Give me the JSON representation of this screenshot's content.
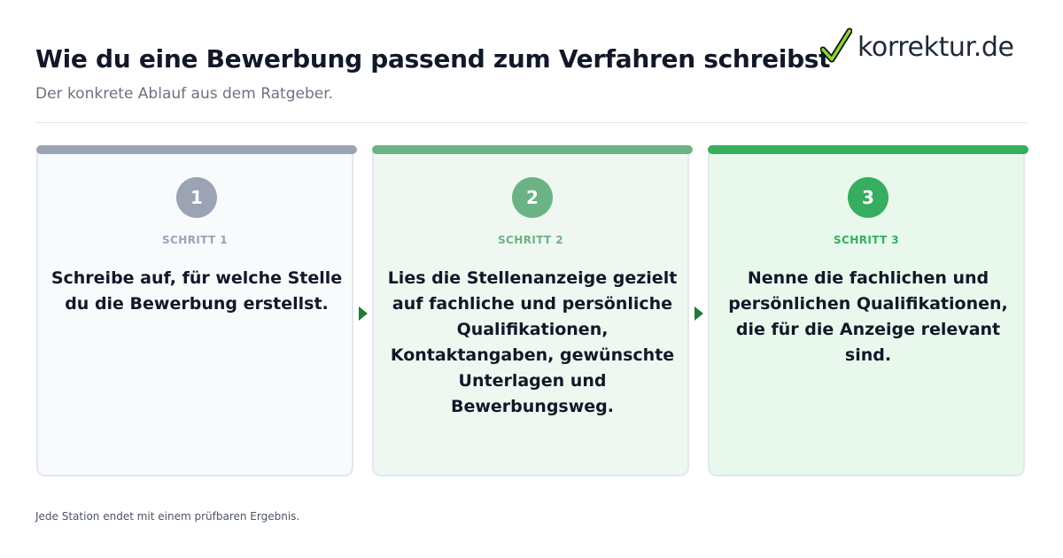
{
  "header": {
    "title": "Wie du eine Bewerbung passend zum Verfahren schreibst",
    "subtitle": "Der konkrete Ablauf aus dem Ratgeber."
  },
  "logo": {
    "icon": "checkmark-icon",
    "text": "korrektur.de"
  },
  "steps": [
    {
      "number": "1",
      "label": "SCHRITT 1",
      "text": "Schreibe auf, für welche Stelle du die Bewerbung erstellst.",
      "color": "#9ca3b3",
      "background": "#f8fafc"
    },
    {
      "number": "2",
      "label": "SCHRITT 2",
      "text": "Lies die Stellenanzeige gezielt auf fachliche und persönliche Qualifikationen, Kontaktangaben, gewünschte Unterlagen und Bewerbungsweg.",
      "color": "#6bb384",
      "background": "#eff7f1"
    },
    {
      "number": "3",
      "label": "SCHRITT 3",
      "text": "Nenne die fachlichen und persönlichen Qualifikationen, die für die Anzeige relevant sind.",
      "color": "#37ad5f",
      "background": "#e8f8ec"
    }
  ],
  "connectors": [
    {
      "icon": "arrow-right-icon",
      "color": "#1f7a3a"
    },
    {
      "icon": "arrow-right-icon",
      "color": "#1f7a3a"
    }
  ],
  "footer": {
    "note": "Jede Station endet mit einem prüfbaren Ergebnis."
  }
}
